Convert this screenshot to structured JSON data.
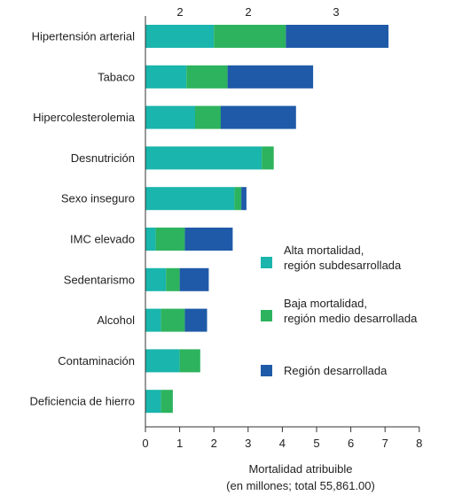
{
  "chart_data": {
    "type": "bar",
    "orientation": "horizontal",
    "stacked": true,
    "categories": [
      "Hipertensión arterial",
      "Tabaco",
      "Hipercolesterolemia",
      "Desnutrición",
      "Sexo inseguro",
      "IMC elevado",
      "Sedentarismo",
      "Alcohol",
      "Contaminación",
      "Deficiencia de hierro"
    ],
    "series": [
      {
        "name": "Alta mortalidad, región subdesarrollada",
        "color": "#1ab5ac",
        "values": [
          2.0,
          1.2,
          1.45,
          3.4,
          2.6,
          0.3,
          0.6,
          0.45,
          1.0,
          0.45
        ]
      },
      {
        "name": "Baja mortalidad, región medio desarrollada",
        "color": "#2db35e",
        "values": [
          2.1,
          1.2,
          0.75,
          0.35,
          0.2,
          0.85,
          0.4,
          0.7,
          0.6,
          0.35
        ]
      },
      {
        "name": "Región desarrollada",
        "color": "#1f5aa8",
        "values": [
          3.0,
          2.5,
          2.2,
          0.0,
          0.15,
          1.4,
          0.85,
          0.65,
          0.0,
          0.0
        ]
      }
    ],
    "top_labels": [
      "2",
      "2",
      "3"
    ],
    "xlim": [
      0,
      8
    ],
    "xticks": [
      0,
      1,
      2,
      3,
      4,
      5,
      6,
      7,
      8
    ],
    "xlabel_line1": "Mortalidad atribuible",
    "xlabel_line2": "(en millones; total 55,861.00)",
    "legend": {
      "position": "right-middle",
      "entries": [
        {
          "line1": "Alta mortalidad,",
          "line2": "región subdesarrollada",
          "color": "#1ab5ac"
        },
        {
          "line1": "Baja mortalidad,",
          "line2": "región medio desarrollada",
          "color": "#2db35e"
        },
        {
          "line1": "Región desarrollada",
          "line2": "",
          "color": "#1f5aa8"
        }
      ]
    },
    "grid": false
  }
}
